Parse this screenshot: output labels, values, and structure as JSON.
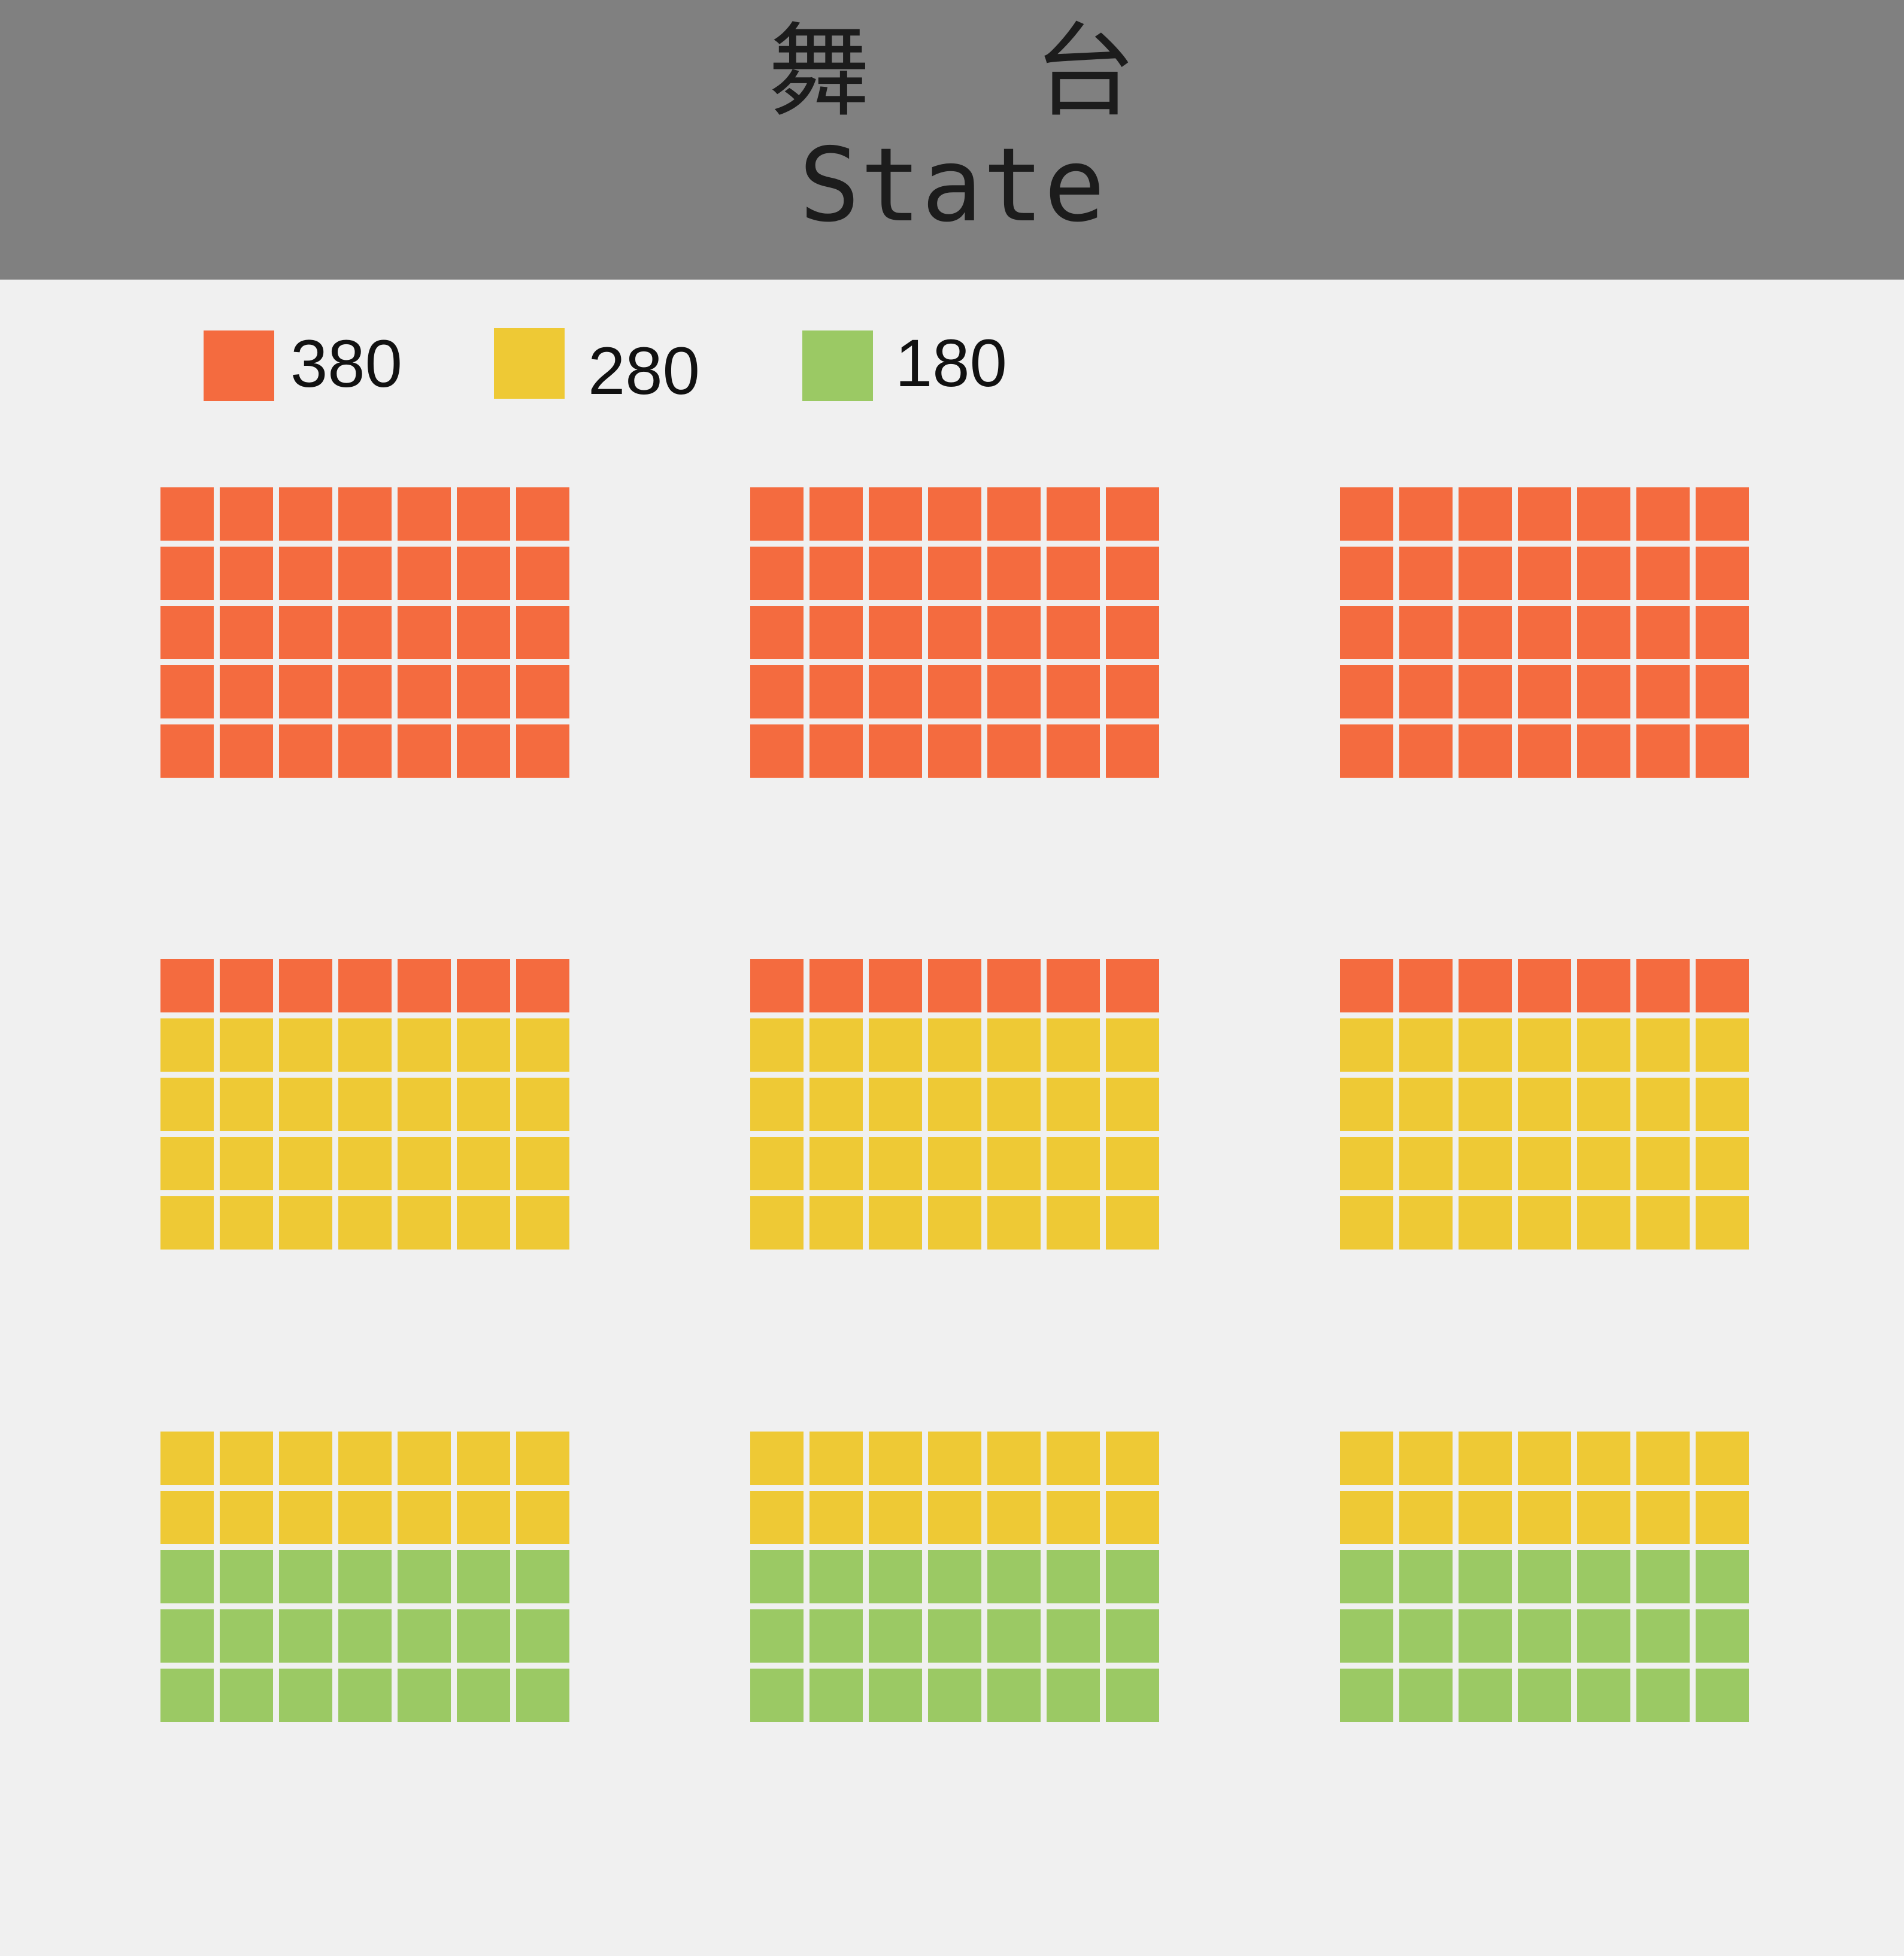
{
  "stage": {
    "title_zh": "舞 台",
    "title_en": "State"
  },
  "legend": [
    {
      "price": "380",
      "color": "#f46b3f"
    },
    {
      "price": "280",
      "color": "#eec935"
    },
    {
      "price": "180",
      "color": "#9bc964"
    }
  ],
  "seat_blocks": [
    {
      "rows": [
        "380",
        "380",
        "380",
        "380",
        "380"
      ]
    },
    {
      "rows": [
        "380",
        "380",
        "380",
        "380",
        "380"
      ]
    },
    {
      "rows": [
        "380",
        "380",
        "380",
        "380",
        "380"
      ]
    },
    {
      "rows": [
        "380",
        "280",
        "280",
        "280",
        "280"
      ]
    },
    {
      "rows": [
        "380",
        "280",
        "280",
        "280",
        "280"
      ]
    },
    {
      "rows": [
        "380",
        "280",
        "280",
        "280",
        "280"
      ]
    },
    {
      "rows": [
        "280",
        "280",
        "180",
        "180",
        "180"
      ]
    },
    {
      "rows": [
        "280",
        "280",
        "180",
        "180",
        "180"
      ]
    },
    {
      "rows": [
        "280",
        "280",
        "180",
        "180",
        "180"
      ]
    }
  ],
  "seats_per_row": 7
}
